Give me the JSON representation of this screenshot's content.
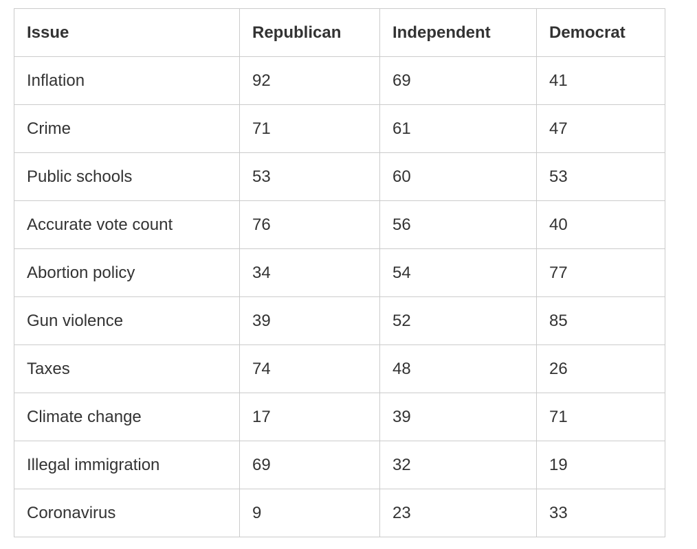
{
  "chart_data": {
    "type": "table",
    "columns": [
      "Issue",
      "Republican",
      "Independent",
      "Democrat"
    ],
    "rows": [
      {
        "issue": "Inflation",
        "values": [
          92,
          69,
          41
        ]
      },
      {
        "issue": "Crime",
        "values": [
          71,
          61,
          47
        ]
      },
      {
        "issue": "Public schools",
        "values": [
          53,
          60,
          53
        ]
      },
      {
        "issue": "Accurate vote count",
        "values": [
          76,
          56,
          40
        ]
      },
      {
        "issue": "Abortion policy",
        "values": [
          34,
          54,
          77
        ]
      },
      {
        "issue": "Gun violence",
        "values": [
          39,
          52,
          85
        ]
      },
      {
        "issue": "Taxes",
        "values": [
          74,
          48,
          26
        ]
      },
      {
        "issue": "Climate change",
        "values": [
          17,
          39,
          71
        ]
      },
      {
        "issue": "Illegal immigration",
        "values": [
          69,
          32,
          19
        ]
      },
      {
        "issue": "Coronavirus",
        "values": [
          9,
          23,
          33
        ]
      }
    ],
    "layout": {
      "grid": true,
      "header_bold": true
    }
  },
  "colors": {
    "border": "#cbcbcb",
    "text": "#333333",
    "background": "#ffffff"
  }
}
